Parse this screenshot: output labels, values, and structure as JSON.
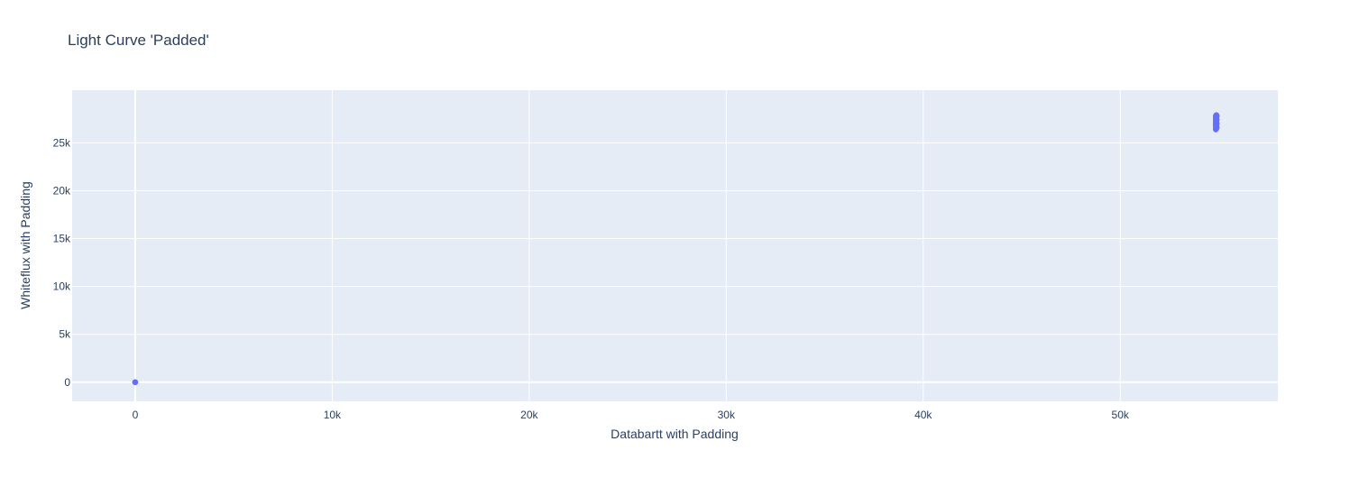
{
  "chart_data": {
    "type": "scatter",
    "title": "Light Curve 'Padded'",
    "xlabel": "Databartt with Padding",
    "ylabel": "Whiteflux with Padding",
    "xlim": [
      -3200,
      58000
    ],
    "ylim": [
      -2000,
      30500
    ],
    "x_ticks": [
      0,
      10000,
      20000,
      30000,
      40000,
      50000
    ],
    "x_tick_labels": [
      "0",
      "10k",
      "20k",
      "30k",
      "40k",
      "50k"
    ],
    "y_ticks": [
      0,
      5000,
      10000,
      15000,
      20000,
      25000
    ],
    "y_tick_labels": [
      "0",
      "5k",
      "10k",
      "15k",
      "20k",
      "25k"
    ],
    "grid": true,
    "legend": "none",
    "colors": {
      "marker": "#636efa",
      "plot_bg": "#e5ecf6",
      "grid": "#ffffff",
      "text": "#2a3f5f"
    },
    "series": [
      {
        "points": [
          [
            0,
            0
          ],
          [
            0,
            0
          ],
          [
            0,
            0
          ],
          [
            54850,
            26400
          ],
          [
            54850,
            26600
          ],
          [
            54850,
            26800
          ],
          [
            54850,
            27000
          ],
          [
            54850,
            27200
          ],
          [
            54850,
            27400
          ],
          [
            54850,
            27600
          ],
          [
            54850,
            27800
          ],
          [
            54880,
            26500
          ],
          [
            54880,
            26700
          ],
          [
            54880,
            26900
          ],
          [
            54880,
            27100
          ],
          [
            54880,
            27300
          ],
          [
            54880,
            27500
          ],
          [
            54880,
            27700
          ],
          [
            54880,
            27900
          ],
          [
            54900,
            26600
          ],
          [
            54900,
            27000
          ],
          [
            54900,
            27400
          ],
          [
            54900,
            27800
          ]
        ]
      }
    ]
  }
}
